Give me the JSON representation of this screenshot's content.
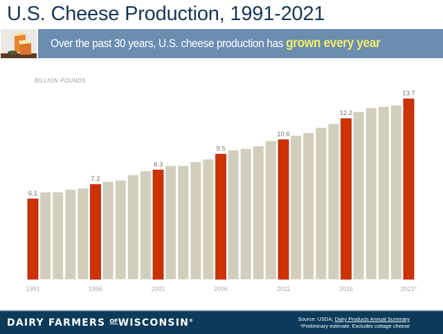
{
  "header": {
    "title": "U.S. Cheese Production, 1991-2021",
    "banner_text": "Over the past 30 years, U.S. cheese production has ",
    "banner_highlight": "grown every year",
    "photo_alt": "cheese-photo"
  },
  "colors": {
    "title": "#14365a",
    "banner_bg": "#6a8db0",
    "banner_highlight": "#f1ee6a",
    "bar_highlight": "#cc3300",
    "bar_normal": "#d3cdbb",
    "footer_bg": "#0c3a5a"
  },
  "chart_data": {
    "type": "bar",
    "title": "U.S. Cheese Production, 1991-2021",
    "ylabel": "BILLION POUNDS",
    "xlabel": "",
    "ylim": [
      0,
      14.5
    ],
    "grid": false,
    "categories": [
      "1991",
      "1992",
      "1993",
      "1994",
      "1995",
      "1996",
      "1997",
      "1998",
      "1999",
      "2000",
      "2001",
      "2002",
      "2003",
      "2004",
      "2005",
      "2006",
      "2007",
      "2008",
      "2009",
      "2010",
      "2011",
      "2012",
      "2013",
      "2014",
      "2015",
      "2016",
      "2017",
      "2018",
      "2019",
      "2020",
      "2021"
    ],
    "values": [
      6.1,
      6.6,
      6.6,
      6.8,
      6.9,
      7.2,
      7.4,
      7.5,
      7.9,
      8.2,
      8.3,
      8.6,
      8.6,
      8.9,
      9.1,
      9.5,
      9.8,
      9.9,
      10.1,
      10.5,
      10.6,
      10.9,
      11.1,
      11.5,
      11.8,
      12.2,
      12.7,
      13.0,
      13.1,
      13.2,
      13.7
    ],
    "highlighted_years": [
      "1991",
      "1996",
      "2001",
      "2006",
      "2011",
      "2016",
      "2021"
    ],
    "data_labels": {
      "1991": "6.1",
      "1996": "7.2",
      "2001": "8.3",
      "2006": "9.5",
      "2011": "10.6",
      "2016": "12.2",
      "2021": "13.7"
    },
    "x_tick_labels": [
      "1991",
      "1996",
      "2001",
      "2006",
      "2011",
      "2016",
      "2021*"
    ]
  },
  "footer": {
    "brand_part1": "DAIRY FARMERS",
    "brand_of": "OF",
    "brand_part2": "WISCONSIN",
    "brand_mark": "®",
    "source_prefix": "Source: USDA, ",
    "source_link": "Dairy Products Annual Summary",
    "note": "*Preliminary estimate; Excludes cottage cheese"
  }
}
